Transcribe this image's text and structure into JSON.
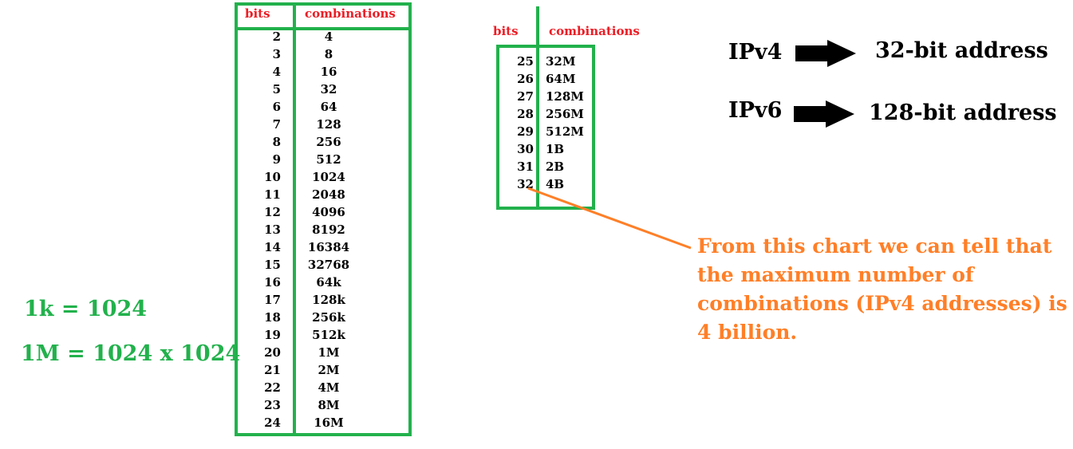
{
  "left_table": {
    "header": {
      "bits": "bits",
      "combinations": "combinations"
    },
    "rows": [
      [
        "2",
        "4"
      ],
      [
        "3",
        "8"
      ],
      [
        "4",
        "16"
      ],
      [
        "5",
        "32"
      ],
      [
        "6",
        "64"
      ],
      [
        "7",
        "128"
      ],
      [
        "8",
        "256"
      ],
      [
        "9",
        "512"
      ],
      [
        "10",
        "1024"
      ],
      [
        "11",
        "2048"
      ],
      [
        "12",
        "4096"
      ],
      [
        "13",
        "8192"
      ],
      [
        "14",
        "16384"
      ],
      [
        "15",
        "32768"
      ],
      [
        "16",
        "64k"
      ],
      [
        "17",
        "128k"
      ],
      [
        "18",
        "256k"
      ],
      [
        "19",
        "512k"
      ],
      [
        "20",
        "1M"
      ],
      [
        "21",
        "2M"
      ],
      [
        "22",
        "4M"
      ],
      [
        "23",
        "8M"
      ],
      [
        "24",
        "16M"
      ]
    ]
  },
  "right_table": {
    "header": {
      "bits": "bits",
      "combinations": "combinations"
    },
    "rows": [
      [
        "25",
        "32M"
      ],
      [
        "26",
        "64M"
      ],
      [
        "27",
        "128M"
      ],
      [
        "28",
        "256M"
      ],
      [
        "29",
        "512M"
      ],
      [
        "30",
        "1B"
      ],
      [
        "31",
        "2B"
      ],
      [
        "32",
        "4B"
      ]
    ]
  },
  "units": {
    "k": "1k = 1024",
    "m": "1M = 1024 x 1024"
  },
  "ip": {
    "v4": {
      "label": "IPv4",
      "desc": "32-bit address"
    },
    "v6": {
      "label": "IPv6",
      "desc": "128-bit address"
    }
  },
  "note": {
    "lines": [
      "From this chart we can tell that",
      "the maximum number of",
      "combinations (IPv4 addresses) is",
      "4 billion."
    ]
  },
  "colors": {
    "green": "#22b14c",
    "red": "#ed1c24",
    "orange": "#ff7f27",
    "black": "#000000"
  }
}
